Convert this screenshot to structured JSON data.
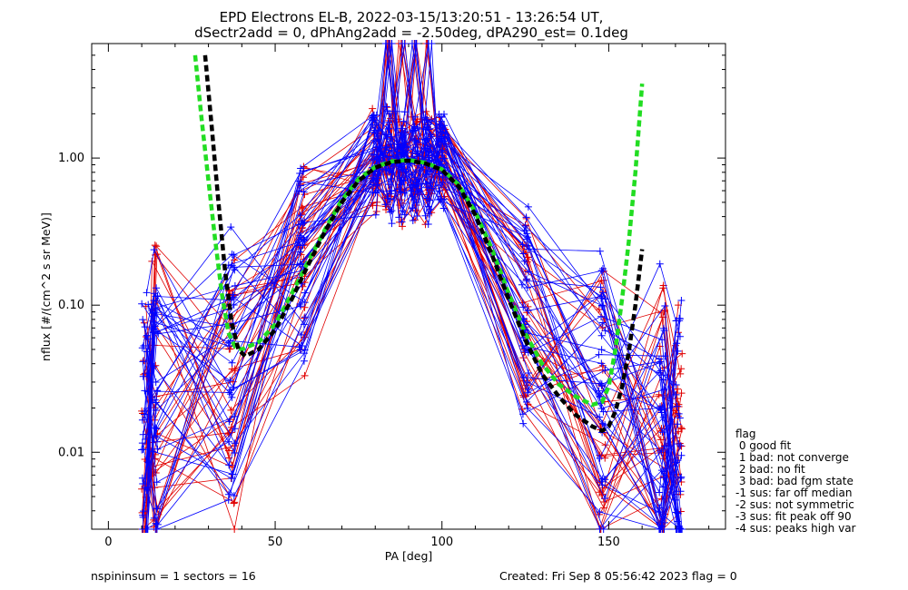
{
  "header": {
    "title_line1": "EPD Electrons EL-B, 2022-03-15/13:20:51 - 13:26:54 UT,",
    "title_line2": "dSectr2add = 0, dPhAng2add = -2.50deg, dPA290_est=   0.1deg"
  },
  "footer": {
    "left": "nspininsum =  1  sectors = 16",
    "right": "Created: Fri Sep  8 05:56:42 2023   flag = 0"
  },
  "legend": {
    "title": "flag",
    "items": [
      " 0 good fit",
      " 1 bad: not converge",
      " 2 bad: no fit",
      " 3 bad: bad fgm state",
      "-1 sus: far off median",
      "-2 sus: not symmetric",
      "-3 sus: fit peak off 90",
      "-4 sus: peaks high var"
    ]
  },
  "colors": {
    "series_a": "#0000ff",
    "series_b": "#e00000",
    "fit_green": "#22dd22",
    "fit_black": "#000000",
    "axes": "#000000"
  },
  "chart_data": {
    "type": "line",
    "title": "EPD Electrons EL-B, 2022-03-15/13:20:51 - 13:26:54 UT, dSectr2add = 0, dPhAng2add = -2.50deg, dPA290_est=   0.1deg",
    "xlabel": "PA [deg]",
    "ylabel": "nflux [#/(cm^2 s sr MeV)]",
    "x_scale": "linear",
    "y_scale": "log",
    "xlim": [
      -5,
      185
    ],
    "ylim": [
      0.003,
      6.0
    ],
    "x_ticks": [
      0,
      50,
      100,
      150
    ],
    "y_ticks": [
      0.01,
      0.1,
      1.0
    ],
    "y_tick_labels": [
      "0.01",
      "0.10",
      "1.00"
    ],
    "x_tick_labels": [
      "0",
      "50",
      "100",
      "150"
    ],
    "grid": false,
    "legend_position": "right-bottom",
    "pa_bins": [
      11,
      14,
      37,
      58,
      80,
      84,
      88,
      92,
      96,
      100,
      125,
      148,
      166,
      171
    ],
    "blue_median_profile": [
      0.012,
      0.025,
      0.028,
      0.2,
      1.0,
      0.9,
      0.85,
      0.85,
      0.9,
      1.0,
      0.08,
      0.025,
      0.015,
      0.012
    ],
    "red_median_profile": [
      0.011,
      0.024,
      0.03,
      0.19,
      0.95,
      0.9,
      0.85,
      0.85,
      0.88,
      0.95,
      0.09,
      0.024,
      0.013,
      0.011
    ],
    "series": [
      {
        "style": "dashed",
        "color": "green",
        "x": [
          26,
          28,
          30,
          32,
          34,
          36,
          38,
          40,
          45,
          50,
          55,
          60,
          65,
          70,
          75,
          80,
          85,
          90,
          95,
          100,
          105,
          110,
          115,
          120,
          125,
          130,
          135,
          140,
          145,
          148,
          150,
          152,
          154,
          156,
          158,
          160
        ],
        "y": [
          5.0,
          1.8,
          0.7,
          0.28,
          0.12,
          0.065,
          0.052,
          0.05,
          0.056,
          0.074,
          0.12,
          0.2,
          0.33,
          0.52,
          0.72,
          0.87,
          0.95,
          0.97,
          0.93,
          0.84,
          0.66,
          0.43,
          0.24,
          0.12,
          0.064,
          0.04,
          0.029,
          0.024,
          0.021,
          0.022,
          0.028,
          0.05,
          0.11,
          0.27,
          0.8,
          3.2
        ]
      },
      {
        "style": "dashed",
        "color": "black",
        "x": [
          29,
          31,
          33,
          35,
          37,
          39,
          41,
          45,
          50,
          55,
          60,
          65,
          70,
          75,
          80,
          85,
          90,
          95,
          100,
          105,
          110,
          115,
          120,
          125,
          130,
          135,
          140,
          145,
          148,
          150,
          152,
          154,
          156,
          158,
          160
        ],
        "y": [
          5.0,
          1.6,
          0.5,
          0.17,
          0.075,
          0.05,
          0.045,
          0.05,
          0.068,
          0.11,
          0.19,
          0.32,
          0.5,
          0.7,
          0.86,
          0.94,
          0.96,
          0.92,
          0.83,
          0.64,
          0.41,
          0.22,
          0.11,
          0.058,
          0.034,
          0.024,
          0.018,
          0.015,
          0.014,
          0.015,
          0.019,
          0.028,
          0.048,
          0.1,
          0.24
        ]
      }
    ]
  }
}
